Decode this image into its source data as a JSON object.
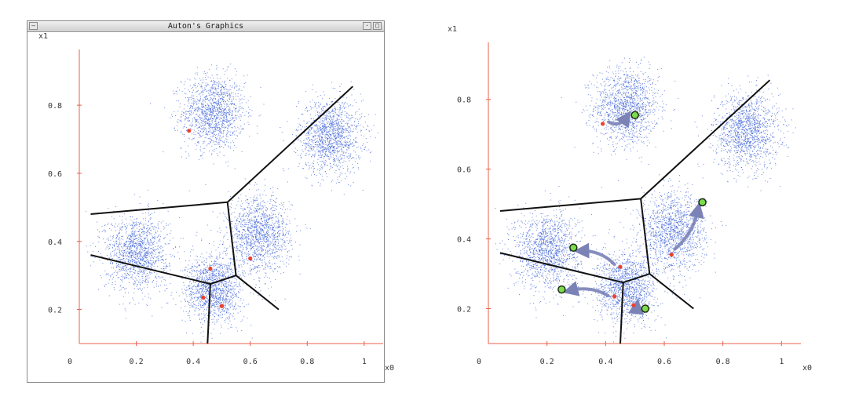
{
  "window": {
    "title": "Auton's Graphics",
    "menu_icon": "window-menu-icon",
    "minimize_icon": "minimize-icon",
    "maximize_icon": "maximize-icon"
  },
  "colors": {
    "axis": "#e8604a",
    "points": "#3a5fd6",
    "boundary": "#111111",
    "centroid_old": "#e8432f",
    "centroid_new": "#7ddc4c",
    "arrow": "#7a82b6"
  },
  "chart_data": [
    {
      "type": "scatter",
      "title": "",
      "xlabel": "x0",
      "ylabel": "x1",
      "xlim": [
        0,
        1.05
      ],
      "ylim": [
        0.1,
        0.95
      ],
      "x_ticks": [
        "0",
        "0.2",
        "0.4",
        "0.6",
        "0.8",
        "1"
      ],
      "y_ticks": [
        "0.2",
        "0.4",
        "0.6",
        "0.8"
      ],
      "clusters": [
        {
          "cx": 0.47,
          "cy": 0.78,
          "spread": 0.055
        },
        {
          "cx": 0.88,
          "cy": 0.71,
          "spread": 0.055
        },
        {
          "cx": 0.63,
          "cy": 0.42,
          "spread": 0.055
        },
        {
          "cx": 0.2,
          "cy": 0.37,
          "spread": 0.055
        },
        {
          "cx": 0.47,
          "cy": 0.26,
          "spread": 0.05
        }
      ],
      "centroids": [
        {
          "x": 0.385,
          "y": 0.725
        },
        {
          "x": 0.6,
          "y": 0.35
        },
        {
          "x": 0.46,
          "y": 0.32
        },
        {
          "x": 0.435,
          "y": 0.235
        },
        {
          "x": 0.5,
          "y": 0.21
        }
      ],
      "boundaries": [
        [
          [
            0.04,
            0.48
          ],
          [
            0.52,
            0.515
          ],
          [
            0.96,
            0.855
          ]
        ],
        [
          [
            0.52,
            0.515
          ],
          [
            0.55,
            0.3
          ]
        ],
        [
          [
            0.04,
            0.36
          ],
          [
            0.46,
            0.275
          ],
          [
            0.55,
            0.3
          ],
          [
            0.7,
            0.2
          ]
        ],
        [
          [
            0.46,
            0.275
          ],
          [
            0.45,
            0.1
          ]
        ]
      ]
    },
    {
      "type": "scatter",
      "title": "",
      "xlabel": "x0",
      "ylabel": "x1",
      "xlim": [
        0,
        1.05
      ],
      "ylim": [
        0.1,
        0.95
      ],
      "x_ticks": [
        "0",
        "0.2",
        "0.4",
        "0.6",
        "0.8",
        "1"
      ],
      "y_ticks": [
        "0.2",
        "0.4",
        "0.6",
        "0.8"
      ],
      "clusters": [
        {
          "cx": 0.47,
          "cy": 0.78,
          "spread": 0.055
        },
        {
          "cx": 0.88,
          "cy": 0.71,
          "spread": 0.055
        },
        {
          "cx": 0.63,
          "cy": 0.42,
          "spread": 0.055
        },
        {
          "cx": 0.2,
          "cy": 0.37,
          "spread": 0.055
        },
        {
          "cx": 0.47,
          "cy": 0.26,
          "spread": 0.05
        }
      ],
      "centroids_old": [
        {
          "x": 0.39,
          "y": 0.73
        },
        {
          "x": 0.625,
          "y": 0.355
        },
        {
          "x": 0.45,
          "y": 0.32
        },
        {
          "x": 0.43,
          "y": 0.235
        },
        {
          "x": 0.495,
          "y": 0.21
        }
      ],
      "centroids_new": [
        {
          "x": 0.5,
          "y": 0.755
        },
        {
          "x": 0.73,
          "y": 0.505
        },
        {
          "x": 0.29,
          "y": 0.375
        },
        {
          "x": 0.25,
          "y": 0.255
        },
        {
          "x": 0.535,
          "y": 0.2
        }
      ],
      "boundaries": [
        [
          [
            0.04,
            0.48
          ],
          [
            0.52,
            0.515
          ],
          [
            0.96,
            0.855
          ]
        ],
        [
          [
            0.52,
            0.515
          ],
          [
            0.55,
            0.3
          ]
        ],
        [
          [
            0.04,
            0.36
          ],
          [
            0.46,
            0.275
          ],
          [
            0.55,
            0.3
          ],
          [
            0.7,
            0.2
          ]
        ],
        [
          [
            0.46,
            0.275
          ],
          [
            0.45,
            0.1
          ]
        ]
      ]
    }
  ]
}
